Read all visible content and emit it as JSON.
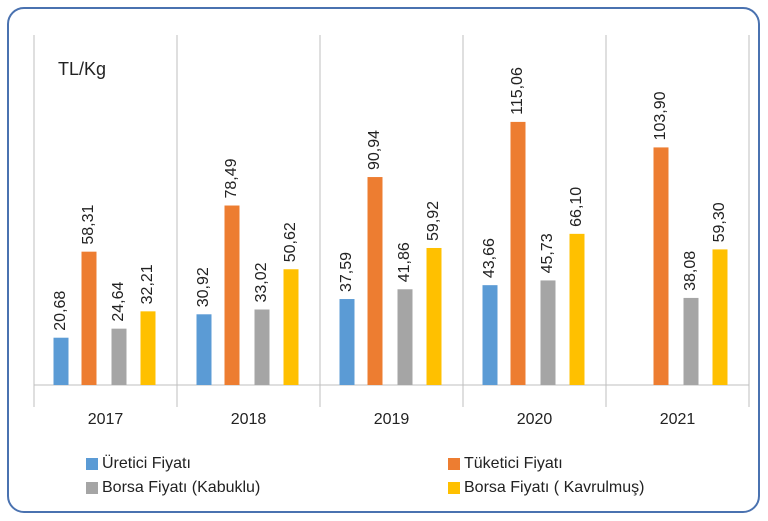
{
  "chart_data": {
    "type": "bar",
    "annotation": "TL/Kg",
    "categories": [
      "2017",
      "2018",
      "2019",
      "2020",
      "2021"
    ],
    "ylim": [
      0,
      150
    ],
    "legend": "bottom",
    "series": [
      {
        "name": "Üretici Fiyatı",
        "color": "#5b9bd5",
        "values": [
          20.68,
          30.92,
          37.59,
          43.66,
          null
        ],
        "value_labels": [
          "20,68",
          "30,92",
          "37,59",
          "43,66",
          null
        ]
      },
      {
        "name": "Tüketici Fiyatı",
        "color": "#ed7d31",
        "values": [
          58.31,
          78.49,
          90.94,
          115.06,
          103.9
        ],
        "value_labels": [
          "58,31",
          "78,49",
          "90,94",
          "115,06",
          "103,90"
        ]
      },
      {
        "name": "Borsa Fiyatı (Kabuklu)",
        "color": "#a5a5a5",
        "values": [
          24.64,
          33.02,
          41.86,
          45.73,
          38.08
        ],
        "value_labels": [
          "24,64",
          "33,02",
          "41,86",
          "45,73",
          "38,08"
        ]
      },
      {
        "name": "Borsa Fiyatı ( Kavrulmuş)",
        "color": "#ffc000",
        "values": [
          32.21,
          50.62,
          59.92,
          66.1,
          59.3
        ],
        "value_labels": [
          "32,21",
          "50,62",
          "59,92",
          "66,10",
          "59,30"
        ]
      }
    ]
  }
}
